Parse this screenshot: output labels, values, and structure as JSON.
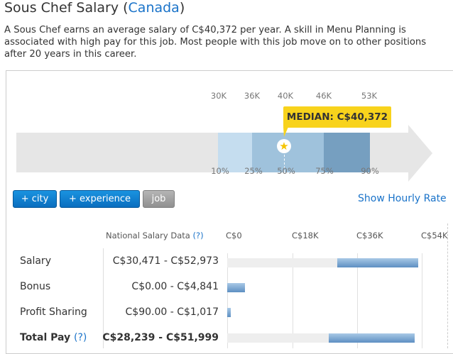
{
  "title": {
    "prefix": "Sous Chef Salary (",
    "country": "Canada",
    "suffix": ")"
  },
  "description": "A Sous Chef earns an average salary of C$40,372 per year. A skill in Menu Planning is associated with high pay for this job. Most people with this job move on to other positions after 20 years in this career.",
  "range": {
    "top_ticks": [
      "30K",
      "36K",
      "40K",
      "46K",
      "53K"
    ],
    "bottom_ticks": [
      "10%",
      "25%",
      "50%",
      "75%",
      "90%"
    ],
    "median_label": "MEDIAN: C$40,372",
    "median_value": 40372
  },
  "filters": {
    "city": "+ city",
    "experience": "+ experience",
    "job": "job"
  },
  "hourly_link": "Show Hourly Rate",
  "table": {
    "header": "National Salary Data",
    "help": "(?)",
    "axis": [
      "C$0",
      "C$18K",
      "C$36K",
      "C$54K"
    ],
    "rows": [
      {
        "label": "Salary",
        "range": "C$30,471 - C$52,973",
        "min": 30471,
        "max": 52973
      },
      {
        "label": "Bonus",
        "range": "C$0.00 - C$4,841",
        "min": 0,
        "max": 4841
      },
      {
        "label": "Profit Sharing",
        "range": "C$90.00 - C$1,017",
        "min": 90,
        "max": 1017
      },
      {
        "label": "Total Pay",
        "range": "C$28,239 - C$51,999",
        "min": 28239,
        "max": 51999
      }
    ]
  },
  "colors": {
    "accent": "#1a73c9",
    "median": "#f8d31c"
  }
}
